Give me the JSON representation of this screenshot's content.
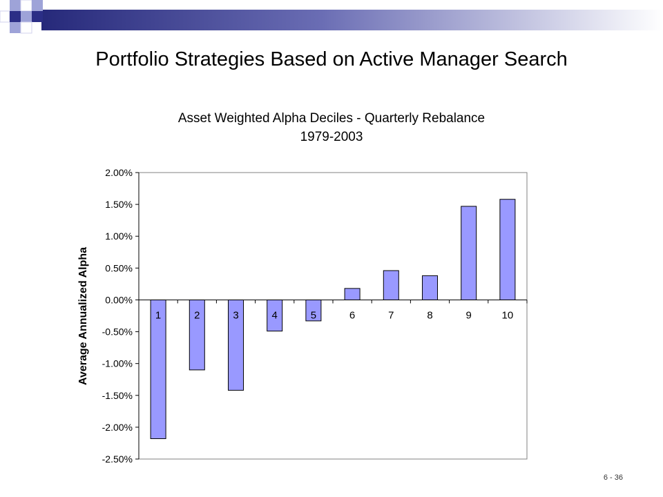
{
  "slide": {
    "title": "Portfolio Strategies Based on Active Manager Search",
    "page_number": "6 - 36",
    "colors": {
      "banner_start": "#26297a",
      "banner_end": "#ffffff",
      "square_dark": "#2b2e86",
      "square_light": "#9ea3d8"
    }
  },
  "chart_data": {
    "type": "bar",
    "title": "Asset Weighted Alpha Deciles - Quarterly Rebalance",
    "subtitle": "1979-2003",
    "xlabel": "",
    "ylabel": "Average Annualized Alpha",
    "categories": [
      "1",
      "2",
      "3",
      "4",
      "5",
      "6",
      "7",
      "8",
      "9",
      "10"
    ],
    "values": [
      -2.18,
      -1.1,
      -1.42,
      -0.49,
      -0.33,
      0.18,
      0.46,
      0.38,
      1.47,
      1.58
    ],
    "value_unit": "%",
    "ylim": [
      -2.5,
      2.0
    ],
    "yticks": [
      "2.00%",
      "1.50%",
      "1.00%",
      "0.50%",
      "0.00%",
      "-0.50%",
      "-1.00%",
      "-1.50%",
      "-2.00%",
      "-2.50%"
    ],
    "ytick_values": [
      2.0,
      1.5,
      1.0,
      0.5,
      0.0,
      -0.5,
      -1.0,
      -1.5,
      -2.0,
      -2.5
    ],
    "bar_color": "#9999ff",
    "grid": false,
    "legend": "none"
  }
}
